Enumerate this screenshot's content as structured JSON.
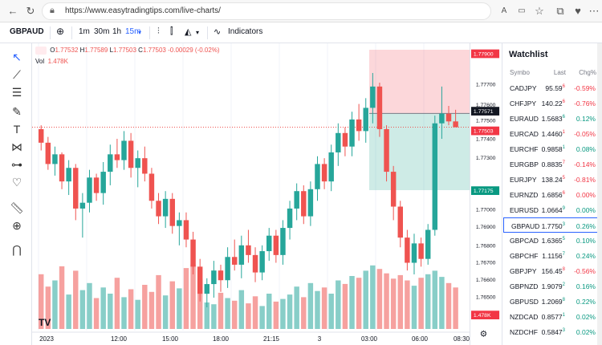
{
  "browser": {
    "url": "https://www.easytradingtips.com/live-charts/",
    "icons": [
      "back-icon",
      "refresh-icon",
      "lock-icon",
      "read-aloud-icon",
      "reader-icon",
      "favorite-icon",
      "collections-icon",
      "extensions-icon",
      "heart-icon",
      "menu-icon"
    ]
  },
  "toolbar": {
    "symbol": "GBPAUD",
    "intervals": [
      "1m",
      "30m",
      "1h",
      "15m"
    ],
    "indicators_label": "Indicators"
  },
  "legend": {
    "o_label": "O",
    "o_val": "1.77532",
    "h_label": "H",
    "h_val": "1.77589",
    "l_label": "L",
    "l_val": "1.77503",
    "c_label": "C",
    "c_val": "1.77503",
    "change": "-0.00029 (-0.02%)",
    "vol_label": "Vol",
    "vol_val": "1.478K"
  },
  "chart_data": {
    "type": "candlestick",
    "price_labels": [
      "1.77900",
      "1.77700",
      "1.77600",
      "1.77500",
      "1.77400",
      "1.77300",
      "1.77100",
      "1.77000",
      "1.76900",
      "1.76800",
      "1.76700",
      "1.76600",
      "1.76500"
    ],
    "highlight_labels": [
      {
        "text": "1.77900",
        "color": "#f23645"
      },
      {
        "text": "1.77571",
        "color": "#131722"
      },
      {
        "text": "1.77503",
        "color": "#f23645"
      },
      {
        "text": "1.77175",
        "color": "#089981"
      },
      {
        "text": "1.478K",
        "color": "#f23645"
      }
    ],
    "time_labels": [
      "2023",
      "12:00",
      "15:00",
      "18:00",
      "21:15",
      "3",
      "03:00",
      "06:00",
      "08:30"
    ],
    "candles": [
      [
        1.7749,
        1.7751,
        1.7738,
        1.7742
      ],
      [
        1.7742,
        1.7745,
        1.7728,
        1.7731
      ],
      [
        1.7731,
        1.774,
        1.7725,
        1.7736
      ],
      [
        1.7736,
        1.7737,
        1.7718,
        1.7722
      ],
      [
        1.7722,
        1.7733,
        1.7715,
        1.7729
      ],
      [
        1.7729,
        1.7731,
        1.7702,
        1.7708
      ],
      [
        1.7708,
        1.7716,
        1.7693,
        1.7711
      ],
      [
        1.7711,
        1.7728,
        1.7706,
        1.7724
      ],
      [
        1.7724,
        1.7726,
        1.7712,
        1.7716
      ],
      [
        1.7716,
        1.7732,
        1.771,
        1.7727
      ],
      [
        1.7727,
        1.7741,
        1.772,
        1.7736
      ],
      [
        1.7736,
        1.7744,
        1.7729,
        1.7733
      ],
      [
        1.7733,
        1.7748,
        1.7728,
        1.7743
      ],
      [
        1.7743,
        1.7747,
        1.7724,
        1.7729
      ],
      [
        1.7729,
        1.7738,
        1.7719,
        1.7734
      ],
      [
        1.7734,
        1.774,
        1.7722,
        1.7726
      ],
      [
        1.7726,
        1.7729,
        1.7708,
        1.7712
      ],
      [
        1.7712,
        1.7716,
        1.77,
        1.7704
      ],
      [
        1.7704,
        1.7717,
        1.7698,
        1.7713
      ],
      [
        1.7713,
        1.7716,
        1.7695,
        1.7699
      ],
      [
        1.7699,
        1.7706,
        1.7689,
        1.7702
      ],
      [
        1.7702,
        1.7706,
        1.7688,
        1.7692
      ],
      [
        1.7692,
        1.7696,
        1.7674,
        1.7678
      ],
      [
        1.7678,
        1.7682,
        1.766,
        1.7664
      ],
      [
        1.7664,
        1.7672,
        1.7657,
        1.7669
      ],
      [
        1.7669,
        1.7681,
        1.7662,
        1.7676
      ],
      [
        1.7676,
        1.7679,
        1.7665,
        1.7671
      ],
      [
        1.7671,
        1.7688,
        1.7667,
        1.7683
      ],
      [
        1.7683,
        1.7692,
        1.7676,
        1.7679
      ],
      [
        1.7679,
        1.7694,
        1.7672,
        1.7689
      ],
      [
        1.7689,
        1.7697,
        1.768,
        1.7684
      ],
      [
        1.7684,
        1.7688,
        1.767,
        1.7675
      ],
      [
        1.7675,
        1.7689,
        1.7671,
        1.7686
      ],
      [
        1.7686,
        1.7698,
        1.7681,
        1.7694
      ],
      [
        1.7694,
        1.7697,
        1.768,
        1.7684
      ],
      [
        1.7684,
        1.7702,
        1.7679,
        1.7698
      ],
      [
        1.7698,
        1.7712,
        1.7692,
        1.7708
      ],
      [
        1.7708,
        1.7721,
        1.7702,
        1.7717
      ],
      [
        1.7717,
        1.772,
        1.77,
        1.7704
      ],
      [
        1.7704,
        1.7722,
        1.7699,
        1.7718
      ],
      [
        1.7718,
        1.7735,
        1.7712,
        1.7731
      ],
      [
        1.7731,
        1.7734,
        1.7718,
        1.7722
      ],
      [
        1.7722,
        1.7741,
        1.7717,
        1.7737
      ],
      [
        1.7737,
        1.7752,
        1.773,
        1.7747
      ],
      [
        1.7747,
        1.775,
        1.7735,
        1.774
      ],
      [
        1.774,
        1.7758,
        1.7735,
        1.7754
      ],
      [
        1.7754,
        1.7762,
        1.7743,
        1.7748
      ],
      [
        1.7748,
        1.7765,
        1.7742,
        1.776
      ],
      [
        1.776,
        1.7778,
        1.7752,
        1.7771
      ],
      [
        1.7771,
        1.7773,
        1.7745,
        1.7749
      ],
      [
        1.7749,
        1.7751,
        1.7722,
        1.7727
      ],
      [
        1.7727,
        1.773,
        1.7702,
        1.7709
      ],
      [
        1.7709,
        1.7712,
        1.7688,
        1.7693
      ],
      [
        1.7693,
        1.7697,
        1.7676,
        1.768
      ],
      [
        1.768,
        1.7695,
        1.7674,
        1.769
      ],
      [
        1.769,
        1.7693,
        1.7678,
        1.7682
      ],
      [
        1.7682,
        1.77,
        1.7679,
        1.7697
      ],
      [
        1.7697,
        1.7756,
        1.7694,
        1.7752
      ],
      [
        1.7752,
        1.7771,
        1.7744,
        1.7757
      ],
      [
        1.7757,
        1.7761,
        1.7751,
        1.7753
      ],
      [
        1.7753,
        1.7759,
        1.775,
        1.775
      ]
    ],
    "volumes": [
      0.62,
      0.48,
      0.55,
      0.71,
      0.39,
      0.66,
      0.44,
      0.52,
      0.35,
      0.47,
      0.4,
      0.58,
      0.36,
      0.45,
      0.33,
      0.5,
      0.42,
      0.61,
      0.38,
      0.54,
      0.46,
      0.69,
      0.73,
      0.57,
      0.3,
      0.28,
      0.41,
      0.35,
      0.32,
      0.44,
      0.29,
      0.37,
      0.26,
      0.4,
      0.31,
      0.34,
      0.39,
      0.48,
      0.36,
      0.52,
      0.43,
      0.47,
      0.4,
      0.55,
      0.51,
      0.6,
      0.58,
      0.66,
      0.72,
      0.68,
      0.63,
      0.57,
      0.61,
      0.55,
      0.49,
      0.58,
      0.62,
      0.66,
      0.59,
      0.52,
      0.47
    ],
    "position": {
      "entry": 1.77571,
      "stop": 1.779,
      "target": 1.77175
    }
  },
  "watchlist": {
    "title": "Watchlist",
    "headers": {
      "symbol": "Symbo",
      "last": "Last",
      "chg": "Chg%"
    },
    "rows": [
      {
        "symbol": "CADJPY",
        "last": "95.59",
        "sup": "6",
        "chg": "-0.59%",
        "dir": "dn"
      },
      {
        "symbol": "CHFJPY",
        "last": "140.22",
        "sup": "6",
        "chg": "-0.76%",
        "dir": "dn"
      },
      {
        "symbol": "EURAUD",
        "last": "1.5683",
        "sup": "6",
        "chg": "0.12%",
        "dir": "up"
      },
      {
        "symbol": "EURCAD",
        "last": "1.4460",
        "sup": "1",
        "chg": "-0.05%",
        "dir": "dn"
      },
      {
        "symbol": "EURCHF",
        "last": "0.9858",
        "sup": "1",
        "chg": "0.08%",
        "dir": "up"
      },
      {
        "symbol": "EURGBP",
        "last": "0.8835",
        "sup": "7",
        "chg": "-0.14%",
        "dir": "dn"
      },
      {
        "symbol": "EURJPY",
        "last": "138.24",
        "sup": "5",
        "chg": "-0.81%",
        "dir": "dn"
      },
      {
        "symbol": "EURNZD",
        "last": "1.6856",
        "sup": "6",
        "chg": "0.00%",
        "dir": "dn"
      },
      {
        "symbol": "EURUSD",
        "last": "1.0664",
        "sup": "9",
        "chg": "0.00%",
        "dir": "up"
      },
      {
        "symbol": "GBPAUD",
        "last": "1.7750",
        "sup": "3",
        "chg": "0.26%",
        "dir": "up"
      },
      {
        "symbol": "GBPCAD",
        "last": "1.6365",
        "sup": "5",
        "chg": "0.10%",
        "dir": "up"
      },
      {
        "symbol": "GBPCHF",
        "last": "1.1156",
        "sup": "7",
        "chg": "0.24%",
        "dir": "up"
      },
      {
        "symbol": "GBPJPY",
        "last": "156.45",
        "sup": "8",
        "chg": "-0.56%",
        "dir": "dn"
      },
      {
        "symbol": "GBPNZD",
        "last": "1.9079",
        "sup": "2",
        "chg": "0.16%",
        "dir": "up"
      },
      {
        "symbol": "GBPUSD",
        "last": "1.2069",
        "sup": "8",
        "chg": "0.22%",
        "dir": "up"
      },
      {
        "symbol": "NZDCAD",
        "last": "0.8577",
        "sup": "1",
        "chg": "0.02%",
        "dir": "up"
      },
      {
        "symbol": "NZDCHF",
        "last": "0.5847",
        "sup": "3",
        "chg": "0.02%",
        "dir": "up"
      }
    ]
  },
  "colors": {
    "up": "#26a69a",
    "down": "#ef5350",
    "accent": "#2962ff"
  }
}
